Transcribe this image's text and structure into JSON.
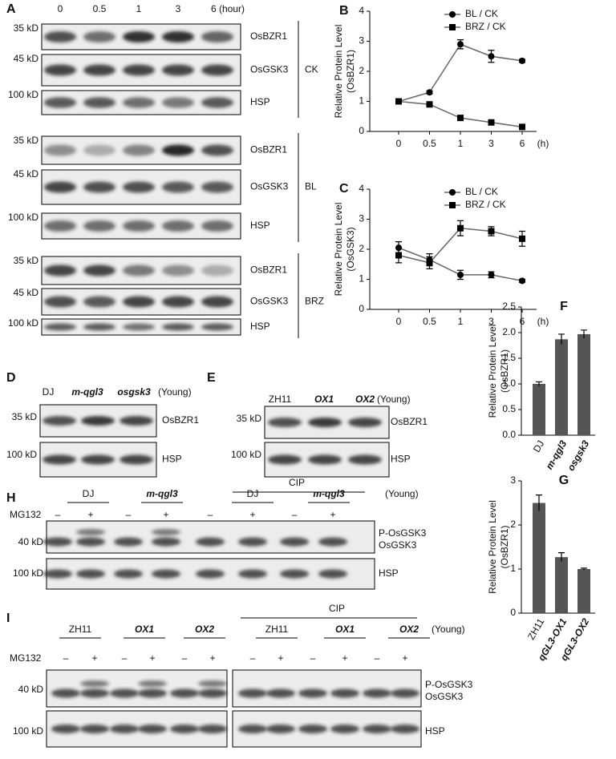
{
  "figure": {
    "panel_a": {
      "letter": "A",
      "lanes": [
        "0",
        "0.5",
        "1",
        "3",
        "6 (hour)"
      ],
      "groups": [
        {
          "name": "CK",
          "rows": [
            {
              "marker": "35 kD",
              "protein": "OsBZR1"
            },
            {
              "marker": "45 kD",
              "protein": "OsGSK3"
            },
            {
              "marker": "100 kD",
              "protein": "HSP"
            }
          ]
        },
        {
          "name": "BL",
          "rows": [
            {
              "marker": "35 kD",
              "protein": "OsBZR1"
            },
            {
              "marker": "45 kD",
              "protein": "OsGSK3"
            },
            {
              "marker": "100 kD",
              "protein": "HSP"
            }
          ]
        },
        {
          "name": "BRZ",
          "rows": [
            {
              "marker": "35 kD",
              "protein": "OsBZR1"
            },
            {
              "marker": "45 kD",
              "protein": "OsGSK3"
            },
            {
              "marker": "100 kD",
              "protein": "HSP"
            }
          ]
        }
      ]
    },
    "panel_d": {
      "letter": "D",
      "lanes": [
        "DJ",
        "m-qgl3",
        "osgsk3"
      ],
      "note": "(Young)",
      "rows": [
        {
          "marker": "35 kD",
          "protein": "OsBZR1"
        },
        {
          "marker": "100 kD",
          "protein": "HSP"
        }
      ]
    },
    "panel_e": {
      "letter": "E",
      "lanes": [
        "ZH11",
        "OX1",
        "OX2"
      ],
      "note": "(Young)",
      "rows": [
        {
          "marker": "35 kD",
          "protein": "OsBZR1"
        },
        {
          "marker": "100 kD",
          "protein": "HSP"
        }
      ]
    },
    "panel_h": {
      "letter": "H",
      "treatment": "CIP",
      "note": "(Young)",
      "reagent": "MG132",
      "groups": [
        "DJ",
        "m-qgl3",
        "DJ",
        "m-qgl3"
      ],
      "signs": [
        "–",
        "+",
        "–",
        "+",
        "–",
        "+",
        "–",
        "+"
      ],
      "rows": [
        {
          "marker": "40 kD",
          "proteins": [
            "P-OsGSK3",
            "OsGSK3"
          ]
        },
        {
          "marker": "100 kD",
          "proteins": [
            "HSP"
          ]
        }
      ]
    },
    "panel_i": {
      "letter": "I",
      "treatment": "CIP",
      "note": "(Young)",
      "reagent": "MG132",
      "groups": [
        "ZH11",
        "OX1",
        "OX2",
        "ZH11",
        "OX1",
        "OX2"
      ],
      "signs": [
        "–",
        "+",
        "–",
        "+",
        "–",
        "+",
        "–",
        "+",
        "–",
        "+",
        "–",
        "+"
      ],
      "rows": [
        {
          "marker": "40 kD",
          "proteins": [
            "P-OsGSK3",
            "OsGSK3"
          ]
        },
        {
          "marker": "100 kD",
          "proteins": [
            "HSP"
          ]
        }
      ]
    }
  },
  "chart_data": [
    {
      "type": "line",
      "panel": "B",
      "ylabel": "Relative Protein Level",
      "ylabel_sub": "(OsBZR1)",
      "categories": [
        "0",
        "0.5",
        "1",
        "3",
        "6"
      ],
      "x_unit": "(h)",
      "ylim": [
        0,
        4
      ],
      "yticks": [
        0,
        1,
        2,
        3,
        4
      ],
      "series": [
        {
          "name": "BL / CK",
          "marker": "circle",
          "color": "#666666",
          "values": [
            1.0,
            1.3,
            2.9,
            2.5,
            2.35
          ],
          "errors": [
            0.05,
            0.05,
            0.15,
            0.2,
            0.05
          ]
        },
        {
          "name": "BRZ / CK",
          "marker": "square",
          "color": "#666666",
          "values": [
            1.0,
            0.9,
            0.45,
            0.3,
            0.15
          ],
          "errors": [
            0.05,
            0.05,
            0.05,
            0.05,
            0.05
          ]
        }
      ]
    },
    {
      "type": "line",
      "panel": "C",
      "ylabel": "Relative Protein Level",
      "ylabel_sub": "(OsGSK3)",
      "categories": [
        "0",
        "0.5",
        "1",
        "3",
        "6"
      ],
      "x_unit": "(h)",
      "ylim": [
        0,
        4
      ],
      "yticks": [
        0,
        1,
        2,
        3,
        4
      ],
      "series": [
        {
          "name": "BL / CK",
          "marker": "circle",
          "color": "#666666",
          "values": [
            2.05,
            1.65,
            1.15,
            1.15,
            0.95
          ],
          "errors": [
            0.2,
            0.2,
            0.15,
            0.1,
            0.05
          ]
        },
        {
          "name": "BRZ / CK",
          "marker": "square",
          "color": "#666666",
          "values": [
            1.8,
            1.55,
            2.7,
            2.6,
            2.35
          ],
          "errors": [
            0.25,
            0.2,
            0.25,
            0.15,
            0.25
          ]
        }
      ]
    },
    {
      "type": "bar",
      "panel": "F",
      "ylabel": "Relative Protein Level",
      "ylabel_sub": "(OsBZR1)",
      "categories": [
        "DJ",
        "m-qgl3",
        "osgsk3"
      ],
      "color": "#555555",
      "values": [
        1.0,
        1.87,
        1.97
      ],
      "errors": [
        0.04,
        0.1,
        0.08
      ],
      "ylim": [
        0,
        2.5
      ],
      "yticks": [
        {
          "value": 0,
          "label": "0.0"
        },
        {
          "value": 0.5,
          "label": "0.5"
        },
        {
          "value": 1,
          "label": "1.0"
        },
        {
          "value": 1.5,
          "label": "1.5"
        },
        {
          "value": 2,
          "label": "2.0"
        },
        {
          "value": 2.5,
          "label": "2.5"
        }
      ]
    },
    {
      "type": "bar",
      "panel": "G",
      "ylabel": "Relative Protein Level",
      "ylabel_sub": "(OsBZR1)",
      "categories": [
        "ZH11",
        "qGL3-OX1",
        "qGL3-OX2"
      ],
      "color": "#555555",
      "values": [
        2.5,
        1.27,
        1.0
      ],
      "errors": [
        0.18,
        0.1,
        0.02
      ],
      "ylim": [
        0,
        3
      ],
      "yticks": [
        0,
        1,
        2,
        3
      ]
    }
  ]
}
